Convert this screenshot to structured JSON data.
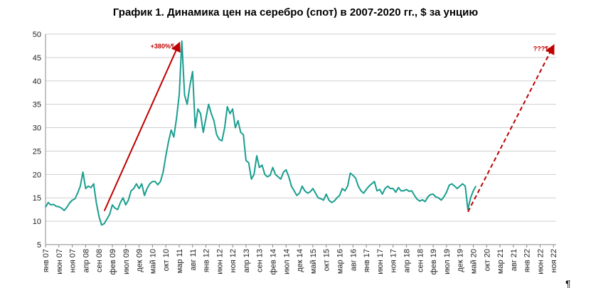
{
  "chart_data": {
    "type": "line",
    "title": "График 1. Динамика цен на серебро (спот) в 2007-2020 гг., $ за унцию",
    "xlabel": "",
    "ylabel": "",
    "ylim": [
      5,
      50
    ],
    "yticks": [
      5,
      10,
      15,
      20,
      25,
      30,
      35,
      40,
      45,
      50
    ],
    "grid": "horizontal",
    "x_tick_labels": [
      "янв 07",
      "июн 07",
      "ноя 07",
      "апр 08",
      "сен 08",
      "фев 09",
      "июл 09",
      "дек 09",
      "май 10",
      "окт 10",
      "мар 11",
      "авг 11",
      "янв 12",
      "июн 12",
      "ноя 12",
      "апр 13",
      "сен 13",
      "фев 14",
      "июл 14",
      "дек 14",
      "май 15",
      "окт 15",
      "мар 16",
      "авг 16",
      "янв 17",
      "июн 17",
      "ноя 17",
      "апр 18",
      "сен 18",
      "фев 19",
      "июл 19",
      "дек 19",
      "май 20",
      "окт 20",
      "мар 21",
      "авг 21",
      "янв 22",
      "июн 22",
      "ноя 22"
    ],
    "series": [
      {
        "color": "#1a9e8f",
        "points": [
          [
            "2007-01",
            13.0
          ],
          [
            "2007-02",
            14.0
          ],
          [
            "2007-03",
            13.5
          ],
          [
            "2007-04",
            13.6
          ],
          [
            "2007-05",
            13.2
          ],
          [
            "2007-06",
            13.1
          ],
          [
            "2007-07",
            12.8
          ],
          [
            "2007-08",
            12.3
          ],
          [
            "2007-09",
            13.0
          ],
          [
            "2007-10",
            13.9
          ],
          [
            "2007-11",
            14.5
          ],
          [
            "2007-12",
            14.8
          ],
          [
            "2008-01",
            16.0
          ],
          [
            "2008-02",
            17.5
          ],
          [
            "2008-03",
            20.5
          ],
          [
            "2008-04",
            17.0
          ],
          [
            "2008-05",
            17.5
          ],
          [
            "2008-06",
            17.2
          ],
          [
            "2008-07",
            18.0
          ],
          [
            "2008-08",
            14.0
          ],
          [
            "2008-09",
            11.0
          ],
          [
            "2008-10",
            9.2
          ],
          [
            "2008-11",
            9.5
          ],
          [
            "2008-12",
            10.5
          ],
          [
            "2009-01",
            11.5
          ],
          [
            "2009-02",
            13.5
          ],
          [
            "2009-03",
            12.8
          ],
          [
            "2009-04",
            12.5
          ],
          [
            "2009-05",
            14.0
          ],
          [
            "2009-06",
            15.0
          ],
          [
            "2009-07",
            13.5
          ],
          [
            "2009-08",
            14.5
          ],
          [
            "2009-09",
            16.5
          ],
          [
            "2009-10",
            17.0
          ],
          [
            "2009-11",
            18.0
          ],
          [
            "2009-12",
            17.0
          ],
          [
            "2010-01",
            18.0
          ],
          [
            "2010-02",
            15.5
          ],
          [
            "2010-03",
            17.0
          ],
          [
            "2010-04",
            18.0
          ],
          [
            "2010-05",
            18.5
          ],
          [
            "2010-06",
            18.5
          ],
          [
            "2010-07",
            17.8
          ],
          [
            "2010-08",
            18.5
          ],
          [
            "2010-09",
            20.5
          ],
          [
            "2010-10",
            24.0
          ],
          [
            "2010-11",
            27.0
          ],
          [
            "2010-12",
            29.5
          ],
          [
            "2011-01",
            28.0
          ],
          [
            "2011-02",
            32.0
          ],
          [
            "2011-03",
            37.0
          ],
          [
            "2011-04",
            48.5
          ],
          [
            "2011-05",
            37.0
          ],
          [
            "2011-06",
            35.0
          ],
          [
            "2011-07",
            39.0
          ],
          [
            "2011-08",
            42.0
          ],
          [
            "2011-09",
            30.0
          ],
          [
            "2011-10",
            34.0
          ],
          [
            "2011-11",
            33.0
          ],
          [
            "2011-12",
            29.0
          ],
          [
            "2012-01",
            32.0
          ],
          [
            "2012-02",
            35.0
          ],
          [
            "2012-03",
            33.0
          ],
          [
            "2012-04",
            31.5
          ],
          [
            "2012-05",
            28.5
          ],
          [
            "2012-06",
            27.5
          ],
          [
            "2012-07",
            27.2
          ],
          [
            "2012-08",
            30.0
          ],
          [
            "2012-09",
            34.5
          ],
          [
            "2012-10",
            33.0
          ],
          [
            "2012-11",
            34.0
          ],
          [
            "2012-12",
            30.0
          ],
          [
            "2013-01",
            31.5
          ],
          [
            "2013-02",
            29.0
          ],
          [
            "2013-03",
            28.5
          ],
          [
            "2013-04",
            23.0
          ],
          [
            "2013-05",
            22.5
          ],
          [
            "2013-06",
            19.0
          ],
          [
            "2013-07",
            20.0
          ],
          [
            "2013-08",
            24.0
          ],
          [
            "2013-09",
            21.5
          ],
          [
            "2013-10",
            22.0
          ],
          [
            "2013-11",
            20.0
          ],
          [
            "2013-12",
            19.5
          ],
          [
            "2014-01",
            19.8
          ],
          [
            "2014-02",
            21.5
          ],
          [
            "2014-03",
            20.0
          ],
          [
            "2014-04",
            19.5
          ],
          [
            "2014-05",
            19.0
          ],
          [
            "2014-06",
            20.5
          ],
          [
            "2014-07",
            21.0
          ],
          [
            "2014-08",
            19.5
          ],
          [
            "2014-09",
            17.5
          ],
          [
            "2014-10",
            16.5
          ],
          [
            "2014-11",
            15.5
          ],
          [
            "2014-12",
            16.0
          ],
          [
            "2015-01",
            17.5
          ],
          [
            "2015-02",
            16.5
          ],
          [
            "2015-03",
            16.0
          ],
          [
            "2015-04",
            16.3
          ],
          [
            "2015-05",
            17.0
          ],
          [
            "2015-06",
            16.0
          ],
          [
            "2015-07",
            15.0
          ],
          [
            "2015-08",
            14.8
          ],
          [
            "2015-09",
            14.5
          ],
          [
            "2015-10",
            15.8
          ],
          [
            "2015-11",
            14.5
          ],
          [
            "2015-12",
            14.0
          ],
          [
            "2016-01",
            14.3
          ],
          [
            "2016-02",
            15.0
          ],
          [
            "2016-03",
            15.5
          ],
          [
            "2016-04",
            17.0
          ],
          [
            "2016-05",
            16.5
          ],
          [
            "2016-06",
            17.5
          ],
          [
            "2016-07",
            20.3
          ],
          [
            "2016-08",
            19.8
          ],
          [
            "2016-09",
            19.2
          ],
          [
            "2016-10",
            17.5
          ],
          [
            "2016-11",
            16.5
          ],
          [
            "2016-12",
            16.0
          ],
          [
            "2017-01",
            16.8
          ],
          [
            "2017-02",
            17.5
          ],
          [
            "2017-03",
            18.0
          ],
          [
            "2017-04",
            18.5
          ],
          [
            "2017-05",
            16.5
          ],
          [
            "2017-06",
            16.8
          ],
          [
            "2017-07",
            15.8
          ],
          [
            "2017-08",
            17.0
          ],
          [
            "2017-09",
            17.5
          ],
          [
            "2017-10",
            17.0
          ],
          [
            "2017-11",
            17.0
          ],
          [
            "2017-12",
            16.2
          ],
          [
            "2018-01",
            17.2
          ],
          [
            "2018-02",
            16.5
          ],
          [
            "2018-03",
            16.5
          ],
          [
            "2018-04",
            16.8
          ],
          [
            "2018-05",
            16.4
          ],
          [
            "2018-06",
            16.5
          ],
          [
            "2018-07",
            15.5
          ],
          [
            "2018-08",
            14.7
          ],
          [
            "2018-09",
            14.3
          ],
          [
            "2018-10",
            14.6
          ],
          [
            "2018-11",
            14.2
          ],
          [
            "2018-12",
            15.2
          ],
          [
            "2019-01",
            15.7
          ],
          [
            "2019-02",
            15.8
          ],
          [
            "2019-03",
            15.2
          ],
          [
            "2019-04",
            15.0
          ],
          [
            "2019-05",
            14.5
          ],
          [
            "2019-06",
            15.2
          ],
          [
            "2019-07",
            16.2
          ],
          [
            "2019-08",
            17.7
          ],
          [
            "2019-09",
            18.0
          ],
          [
            "2019-10",
            17.5
          ],
          [
            "2019-11",
            17.0
          ],
          [
            "2019-12",
            17.5
          ],
          [
            "2020-01",
            18.0
          ],
          [
            "2020-02",
            17.5
          ],
          [
            "2020-03",
            12.5
          ],
          [
            "2020-04",
            15.0
          ],
          [
            "2020-05",
            16.5
          ],
          [
            "2020-06",
            17.5
          ]
        ]
      }
    ],
    "annotations": [
      {
        "text": "+380%¶",
        "color": "#c00000",
        "style": "solid",
        "from": [
          "2008-11",
          12.2
        ],
        "to": [
          "2011-03",
          48.0
        ]
      },
      {
        "text": "???¶",
        "color": "#c00000",
        "style": "dashed",
        "from": [
          "2020-03",
          12.0
        ],
        "to": [
          "2022-11",
          47.5
        ]
      }
    ],
    "corner_mark": "¶"
  }
}
